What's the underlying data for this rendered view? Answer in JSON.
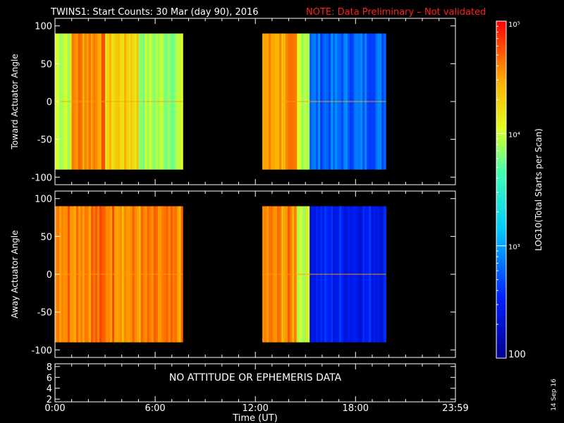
{
  "header": {
    "title": "TWINS1: Start Counts: 30 Mar (day  90), 2016",
    "note": "NOTE: Data Preliminary – Not validated",
    "note_color": "#ff2020"
  },
  "footer": {
    "xlabel": "Time (UT)",
    "date_stamp": "14 Sep 16",
    "no_data_message": "NO ATTITUDE OR EPHEMERIS DATA"
  },
  "colorbar": {
    "label": "LOG10(Total Starts per Scan)",
    "scale": "log",
    "range": [
      100,
      100000
    ],
    "ticks": [
      {
        "value": 100,
        "label": "100"
      },
      {
        "value": 1000,
        "label": "10³"
      },
      {
        "value": 10000,
        "label": "10⁴"
      },
      {
        "value": 100000,
        "label": "10⁵"
      }
    ]
  },
  "chart_data": [
    {
      "type": "heatmap",
      "ylabel": "Toward Actuator Angle",
      "xlim": [
        "0:00",
        "23:59"
      ],
      "ylim": [
        -110,
        110
      ],
      "yticks": [
        "-100",
        "-50",
        "0",
        "50",
        "100"
      ],
      "xticks": [
        "0:00",
        "6:00",
        "12:00",
        "18:00",
        "23:59"
      ],
      "angle_range": [
        -90,
        90
      ],
      "data_intervals": [
        {
          "start": "0:00",
          "end": "7:40"
        },
        {
          "start": "12:25",
          "end": "19:50"
        }
      ],
      "segments_log10": [
        {
          "start": "0:00",
          "end": "1:00",
          "level": 4.0
        },
        {
          "start": "1:00",
          "end": "3:00",
          "level": 4.6
        },
        {
          "start": "3:00",
          "end": "5:00",
          "level": 4.3
        },
        {
          "start": "5:00",
          "end": "7:40",
          "level": 3.9
        },
        {
          "start": "12:25",
          "end": "14:30",
          "level": 4.5
        },
        {
          "start": "14:30",
          "end": "15:15",
          "level": 4.0
        },
        {
          "start": "15:15",
          "end": "19:50",
          "level": 2.8
        }
      ]
    },
    {
      "type": "heatmap",
      "ylabel": "Away Actuator Angle",
      "xlim": [
        "0:00",
        "23:59"
      ],
      "ylim": [
        -110,
        110
      ],
      "yticks": [
        "-100",
        "-50",
        "0",
        "50",
        "100"
      ],
      "xticks": [
        "0:00",
        "6:00",
        "12:00",
        "18:00",
        "23:59"
      ],
      "angle_range": [
        -90,
        90
      ],
      "data_intervals": [
        {
          "start": "0:00",
          "end": "7:40"
        },
        {
          "start": "12:25",
          "end": "19:50"
        }
      ],
      "segments_log10": [
        {
          "start": "0:00",
          "end": "4:00",
          "level": 4.65
        },
        {
          "start": "4:00",
          "end": "7:40",
          "level": 4.55
        },
        {
          "start": "12:25",
          "end": "14:30",
          "level": 4.55
        },
        {
          "start": "14:30",
          "end": "15:15",
          "level": 4.0
        },
        {
          "start": "15:15",
          "end": "19:50",
          "level": 2.5
        }
      ]
    },
    {
      "type": "line",
      "ylim": [
        1.5,
        8.5
      ],
      "yticks": [
        "2",
        "4",
        "6",
        "8"
      ],
      "xticks": [
        "0:00",
        "6:00",
        "12:00",
        "18:00",
        "23:59"
      ],
      "xlim": [
        "0:00",
        "23:59"
      ]
    }
  ]
}
